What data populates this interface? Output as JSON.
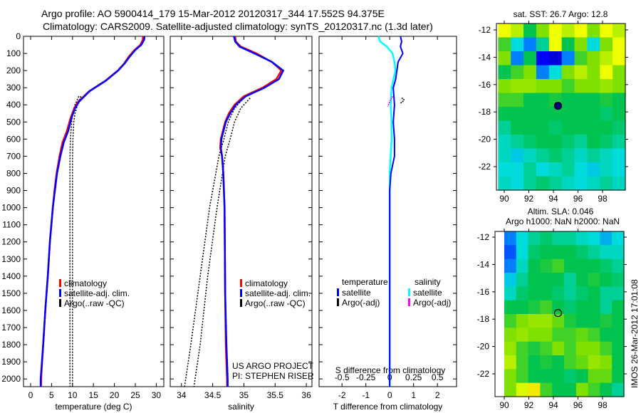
{
  "title": {
    "line1": "Argo profile: AO 5900414_179 15-Mar-2012 20120317_344 17.552S 94.375E",
    "line2": "Climatology: CARS2009. Satellite-adjusted climatology: synTS_20120317.nc (1.3d later)"
  },
  "credit": {
    "line1": "US ARGO PROJECT",
    "line2": "PI: STEPHEN RISER"
  },
  "footer_stamp": "IMOS 26-Mar-2012 17:01:08",
  "colors": {
    "climatology": "#ff0000",
    "satellite": "#0000ff",
    "argo": "#000000",
    "sal_satellite": "#00ffff",
    "sal_argo": "#ff00ff"
  },
  "chart_data": [
    {
      "type": "line",
      "name": "temperature",
      "xlabel": "temperature (deg C)",
      "ylabel": "",
      "xlim": [
        -1.7,
        31.8
      ],
      "ylim": [
        2045,
        0
      ],
      "xticks": [
        0,
        5,
        10,
        15,
        20,
        25,
        30
      ],
      "yticks": [
        0,
        100,
        200,
        300,
        400,
        500,
        600,
        700,
        800,
        900,
        1000,
        1100,
        1200,
        1300,
        1400,
        1500,
        1600,
        1700,
        1800,
        1900,
        2000
      ],
      "legend": [
        "climatology",
        "satellite-adj. clim.",
        "Argo(..raw -QC)"
      ],
      "series": [
        {
          "name": "climatology",
          "depth": [
            0,
            20,
            50,
            80,
            120,
            160,
            200,
            260,
            320,
            380,
            420,
            480,
            550,
            620,
            700,
            800,
            900,
            1000,
            1200,
            1400,
            1600,
            1800,
            2000,
            2045
          ],
          "values": [
            26.8,
            26.8,
            26.2,
            24.8,
            23.4,
            22.3,
            20.8,
            17.8,
            14,
            11.4,
            10.4,
            9.5,
            8.7,
            7.6,
            6.9,
            6.2,
            5.7,
            5.3,
            4.6,
            4.1,
            3.5,
            3.0,
            2.5,
            2.5
          ]
        },
        {
          "name": "satellite-adj. clim.",
          "depth": [
            0,
            20,
            50,
            80,
            120,
            160,
            200,
            260,
            320,
            380,
            420,
            480,
            550,
            620,
            700,
            800,
            900,
            1000,
            1200,
            1400,
            1600,
            1800,
            2000,
            2045
          ],
          "values": [
            27.2,
            27.1,
            26.4,
            25.0,
            23.6,
            22.4,
            20.9,
            17.9,
            14.1,
            11.6,
            10.6,
            9.7,
            9.0,
            7.9,
            7.1,
            6.3,
            5.8,
            5.3,
            4.6,
            4.1,
            3.5,
            3.0,
            2.4,
            2.4
          ]
        },
        {
          "name": "Argo(..raw -QC) A",
          "depth": [
            350,
            400,
            450,
            500,
            600,
            700,
            800,
            1000,
            1500,
            2045
          ],
          "values": [
            11.5,
            10.6,
            10.0,
            9.8,
            9.5,
            9.4,
            9.4,
            9.4,
            9.4,
            9.4
          ]
        },
        {
          "name": "Argo(..raw -QC) B",
          "depth": [
            350,
            400,
            450,
            500,
            600,
            700,
            800,
            1000,
            1500,
            2045
          ],
          "values": [
            12.0,
            11.2,
            10.6,
            10.3,
            10.1,
            10.0,
            10.0,
            10.0,
            10.0,
            10.0
          ]
        }
      ]
    },
    {
      "type": "line",
      "name": "salinity",
      "xlabel": "salinity",
      "xlim": [
        33.82,
        36.09
      ],
      "ylim": [
        2045,
        0
      ],
      "xticks": [
        34,
        34.5,
        35,
        35.5,
        36
      ],
      "legend": [
        "climatology",
        "satellite-adj. clim.",
        "Argo(..raw -QC)"
      ],
      "series": [
        {
          "name": "climatology",
          "depth": [
            0,
            30,
            60,
            100,
            150,
            200,
            250,
            300,
            350,
            400,
            450,
            500,
            600,
            650,
            700,
            800,
            1000,
            1500,
            1800,
            2000,
            2045
          ],
          "values": [
            34.86,
            34.87,
            34.95,
            35.2,
            35.45,
            35.6,
            35.52,
            35.3,
            35.0,
            34.85,
            34.76,
            34.7,
            34.63,
            34.62,
            34.65,
            34.67,
            34.69,
            34.7,
            34.71,
            34.73,
            34.73
          ]
        },
        {
          "name": "satellite-adj. clim.",
          "depth": [
            0,
            30,
            60,
            100,
            150,
            200,
            250,
            300,
            350,
            400,
            450,
            500,
            600,
            650,
            700,
            800,
            1000,
            1500,
            1800,
            2000,
            2045
          ],
          "values": [
            34.84,
            34.86,
            34.93,
            35.17,
            35.45,
            35.63,
            35.56,
            35.33,
            35.03,
            34.87,
            34.78,
            34.71,
            34.64,
            34.63,
            34.65,
            34.67,
            34.69,
            34.7,
            34.72,
            34.74,
            34.74
          ]
        },
        {
          "name": "Argo(..raw -QC) A",
          "depth": [
            360,
            420,
            500,
            600,
            700,
            1000,
            1400,
            1800,
            2045
          ],
          "values": [
            35.0,
            34.85,
            34.75,
            34.68,
            34.6,
            34.45,
            34.3,
            34.15,
            34.05
          ]
        },
        {
          "name": "Argo(..raw -QC) B",
          "depth": [
            360,
            420,
            500,
            600,
            700,
            1000,
            1400,
            1800,
            2045
          ],
          "values": [
            35.1,
            34.95,
            34.85,
            34.78,
            34.7,
            34.57,
            34.42,
            34.3,
            34.2
          ]
        }
      ]
    },
    {
      "type": "line",
      "name": "difference",
      "xlabel": "T difference from climatology",
      "x2label": "S difference from climatology",
      "xlim": [
        -2.96,
        2.8
      ],
      "xticks": [
        -2,
        -1,
        0,
        1,
        2
      ],
      "x2ticks": [
        "-0.5",
        "-0.25",
        "0",
        "0.25",
        "0.5"
      ],
      "x2tick_values": [
        -0.5,
        -0.25,
        0,
        0.25,
        0.5
      ],
      "ylim": [
        2045,
        0
      ],
      "legend_titles": [
        "temperature",
        "salinity"
      ],
      "legend": [
        "satellite",
        "Argo(-adj)",
        "satellite",
        "Argo(-adj)"
      ],
      "series": [
        {
          "name": "T satellite",
          "depth": [
            0,
            30,
            60,
            100,
            150,
            200,
            250,
            300,
            400,
            500,
            600,
            700,
            800,
            900,
            1000,
            1200,
            1500,
            2045
          ],
          "values": [
            0.45,
            0.5,
            0.45,
            0.55,
            0.35,
            0.3,
            0.25,
            0.15,
            0.2,
            0.15,
            0.2,
            0.2,
            0.05,
            0,
            0,
            0,
            0,
            0
          ]
        },
        {
          "name": "S satellite",
          "depth": [
            0,
            30,
            60,
            100,
            150,
            200,
            250,
            300,
            400,
            500,
            600,
            700,
            800,
            900,
            1000,
            1200,
            1500,
            2045
          ],
          "values": [
            -0.12,
            -0.1,
            -0.03,
            0.03,
            0.05,
            0.06,
            0.04,
            0.02,
            0.01,
            0.02,
            0.02,
            0.01,
            0.0,
            0.0,
            0.0,
            0.0,
            0.0,
            0.0
          ]
        },
        {
          "name": "T Argo(-adj)",
          "depth": [
            360,
            370,
            380,
            390
          ],
          "values": [
            0.5,
            0.6,
            0.55,
            0.45
          ]
        },
        {
          "name": "S Argo(-adj)",
          "depth": [
            350,
            380,
            410
          ],
          "values": [
            0.03,
            0.0,
            -0.02
          ]
        }
      ]
    },
    {
      "type": "heatmap",
      "name": "sst-map",
      "title": "sat. SST: 26.7  Argo: 12.8",
      "xticks": [
        90,
        92,
        94,
        96,
        98
      ],
      "yticks": [
        -12,
        -14,
        -16,
        -18,
        -20,
        -22
      ],
      "lon_range": [
        89.5,
        99.5
      ],
      "lat_range": [
        -11.5,
        -23.5
      ],
      "argo_position": [
        94.375,
        -17.552
      ],
      "grid": [
        [
          0.7,
          0.65,
          0.5,
          0.6,
          0.7,
          0.65,
          0.7,
          0.6,
          0.7,
          0.65
        ],
        [
          0.55,
          0.4,
          0.3,
          0.45,
          0.7,
          0.5,
          0.6,
          0.4,
          0.6,
          0.7
        ],
        [
          0.6,
          0.3,
          0.5,
          0.15,
          0.1,
          0.3,
          0.55,
          0.6,
          0.65,
          0.7
        ],
        [
          0.5,
          0.55,
          0.6,
          0.3,
          0.4,
          0.6,
          0.65,
          0.6,
          0.7,
          0.6
        ],
        [
          0.6,
          0.62,
          0.62,
          0.6,
          0.6,
          0.55,
          0.6,
          0.6,
          0.62,
          0.6
        ],
        [
          0.55,
          0.55,
          0.5,
          0.5,
          0.52,
          0.5,
          0.5,
          0.5,
          0.52,
          0.5
        ],
        [
          0.5,
          0.5,
          0.5,
          0.5,
          0.5,
          0.5,
          0.5,
          0.5,
          0.48,
          0.5
        ],
        [
          0.45,
          0.5,
          0.5,
          0.5,
          0.48,
          0.5,
          0.5,
          0.5,
          0.5,
          0.48
        ],
        [
          0.42,
          0.45,
          0.48,
          0.5,
          0.5,
          0.48,
          0.45,
          0.5,
          0.48,
          0.45
        ],
        [
          0.42,
          0.38,
          0.42,
          0.45,
          0.48,
          0.45,
          0.42,
          0.45,
          0.42,
          0.4
        ],
        [
          0.4,
          0.4,
          0.45,
          0.4,
          0.42,
          0.45,
          0.4,
          0.38,
          0.42,
          0.4
        ],
        [
          0.42,
          0.4,
          0.45,
          0.48,
          0.45,
          0.42,
          0.4,
          0.42,
          0.45,
          0.42
        ]
      ]
    },
    {
      "type": "heatmap",
      "name": "sla-map",
      "title": "Altim. SLA: 0.046",
      "subtitle": "Argo h1000: NaN h2000: NaN",
      "xticks": [
        90,
        92,
        94,
        96,
        98
      ],
      "yticks": [
        -12,
        -14,
        -16,
        -18,
        -20,
        -22
      ],
      "lon_range": [
        90,
        99.5
      ],
      "lat_range": [
        -11.5,
        -23.5
      ],
      "argo_position": [
        94.375,
        -17.552
      ],
      "grid": [
        [
          0.3,
          0.4,
          0.45,
          0.48,
          0.45,
          0.45,
          0.42,
          0.4,
          0.35,
          0.4
        ],
        [
          0.25,
          0.4,
          0.48,
          0.5,
          0.5,
          0.5,
          0.48,
          0.45,
          0.42,
          0.42
        ],
        [
          0.3,
          0.42,
          0.5,
          0.52,
          0.55,
          0.5,
          0.5,
          0.5,
          0.48,
          0.45
        ],
        [
          0.38,
          0.45,
          0.5,
          0.5,
          0.5,
          0.45,
          0.5,
          0.52,
          0.5,
          0.48
        ],
        [
          0.42,
          0.48,
          0.5,
          0.5,
          0.48,
          0.45,
          0.48,
          0.5,
          0.45,
          0.45
        ],
        [
          0.5,
          0.5,
          0.52,
          0.55,
          0.5,
          0.48,
          0.5,
          0.5,
          0.45,
          0.5
        ],
        [
          0.55,
          0.6,
          0.62,
          0.62,
          0.58,
          0.52,
          0.5,
          0.5,
          0.52,
          0.5
        ],
        [
          0.6,
          0.62,
          0.6,
          0.6,
          0.55,
          0.55,
          0.58,
          0.55,
          0.5,
          0.5
        ],
        [
          0.62,
          0.55,
          0.52,
          0.55,
          0.6,
          0.55,
          0.6,
          0.6,
          0.55,
          0.5
        ],
        [
          0.65,
          0.55,
          0.5,
          0.52,
          0.5,
          0.55,
          0.58,
          0.62,
          0.6,
          0.5
        ],
        [
          0.6,
          0.55,
          0.5,
          0.5,
          0.5,
          0.48,
          0.5,
          0.58,
          0.58,
          0.5
        ],
        [
          0.6,
          0.68,
          0.72,
          0.55,
          0.5,
          0.5,
          0.6,
          0.55,
          0.5,
          0.45
        ]
      ]
    }
  ]
}
